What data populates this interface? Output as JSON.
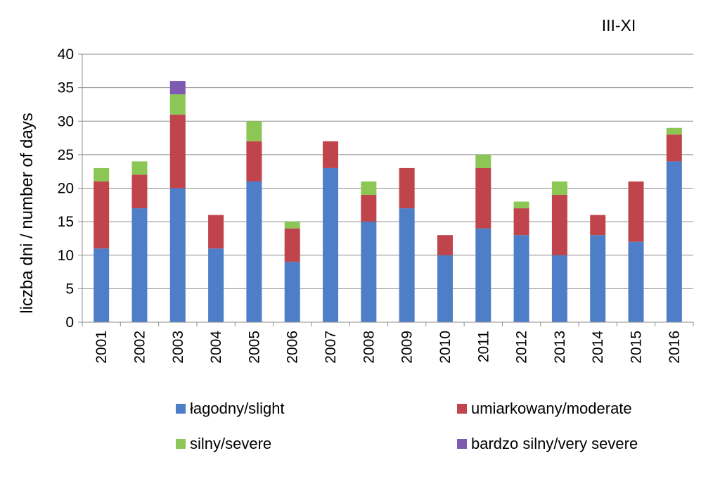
{
  "chart_data": {
    "type": "bar",
    "stacked": true,
    "title": "III-XI",
    "xlabel": "",
    "ylabel": "liczba dni / number of days",
    "ylim": [
      0,
      40
    ],
    "yticks": [
      0,
      5,
      10,
      15,
      20,
      25,
      30,
      35,
      40
    ],
    "grid": true,
    "legend_position": "bottom",
    "categories": [
      "2001",
      "2002",
      "2003",
      "2004",
      "2005",
      "2006",
      "2007",
      "2008",
      "2009",
      "2010",
      "2011",
      "2012",
      "2013",
      "2014",
      "2015",
      "2016"
    ],
    "series": [
      {
        "name": "łagodny/slight",
        "color": "#4f7ec8",
        "values": [
          11,
          17,
          20,
          11,
          21,
          9,
          23,
          15,
          17,
          10,
          14,
          13,
          10,
          13,
          12,
          24
        ]
      },
      {
        "name": "umiarkowany/moderate",
        "color": "#c0444b",
        "values": [
          10,
          5,
          11,
          5,
          6,
          5,
          4,
          4,
          6,
          3,
          9,
          4,
          9,
          3,
          9,
          4
        ]
      },
      {
        "name": "silny/severe",
        "color": "#8cc655",
        "values": [
          2,
          2,
          3,
          0,
          3,
          1,
          0,
          2,
          0,
          0,
          2,
          1,
          2,
          0,
          0,
          1
        ]
      },
      {
        "name": "bardzo silny/very severe",
        "color": "#7e5bb0",
        "values": [
          0,
          0,
          2,
          0,
          0,
          0,
          0,
          0,
          0,
          0,
          0,
          0,
          0,
          0,
          0,
          0
        ]
      }
    ]
  }
}
